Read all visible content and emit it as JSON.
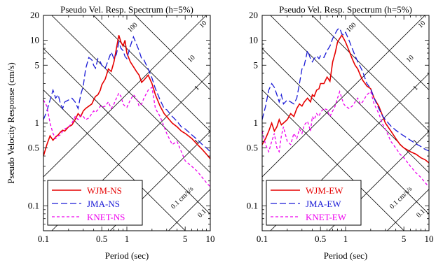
{
  "chart_data": [
    {
      "type": "line",
      "title": "Pseudo Vel. Resp. Spectrum (h=5%)",
      "xlabel": "Period (sec)",
      "ylabel": "Pseudo Velocity Response (cm/s)",
      "xscale": "log",
      "yscale": "log",
      "xlim": [
        0.1,
        10
      ],
      "ylim": [
        0.05,
        20
      ],
      "xticks": [
        "0.1",
        "0.5",
        "1",
        "5",
        "10"
      ],
      "yticks": [
        "0.1",
        "0.5",
        "1",
        "5",
        "10",
        "20"
      ],
      "tripartite_grid": {
        "acceleration_lines": [
          "100",
          "10",
          "1"
        ],
        "displacement_lines": [
          "10",
          "1",
          "0.1 cm/s/s",
          "0.1"
        ]
      },
      "legend": {
        "placement": "bottom-left"
      },
      "series": [
        {
          "name": "WJM-NS",
          "color": "#e60000",
          "dash": "solid",
          "x": [
            0.1,
            0.11,
            0.12,
            0.13,
            0.14,
            0.15,
            0.16,
            0.17,
            0.18,
            0.2,
            0.22,
            0.24,
            0.26,
            0.28,
            0.3,
            0.32,
            0.35,
            0.38,
            0.4,
            0.42,
            0.45,
            0.48,
            0.5,
            0.55,
            0.6,
            0.65,
            0.7,
            0.75,
            0.8,
            0.85,
            0.9,
            0.95,
            1.0,
            1.1,
            1.2,
            1.3,
            1.4,
            1.5,
            1.6,
            1.8,
            2.0,
            2.2,
            2.5,
            2.8,
            3.0,
            3.5,
            4.0,
            4.5,
            5.0,
            6.0,
            7.0,
            8.0,
            9.0,
            10.0
          ],
          "y": [
            0.4,
            0.55,
            0.7,
            0.62,
            0.68,
            0.72,
            0.78,
            0.82,
            0.8,
            0.9,
            0.95,
            1.1,
            1.3,
            1.2,
            1.4,
            1.5,
            1.6,
            1.7,
            1.9,
            2.1,
            2.2,
            2.5,
            2.9,
            3.4,
            4.5,
            4.2,
            5.5,
            8.0,
            11.5,
            9.5,
            8.5,
            10.0,
            7.0,
            5.5,
            4.8,
            4.2,
            3.8,
            3.1,
            3.3,
            3.8,
            3.0,
            2.2,
            1.6,
            1.3,
            1.2,
            1.0,
            0.9,
            0.8,
            0.75,
            0.65,
            0.55,
            0.48,
            0.42,
            0.37
          ]
        },
        {
          "name": "JMA-NS",
          "color": "#1a1ad6",
          "dash": "long-dash",
          "x": [
            0.1,
            0.11,
            0.12,
            0.13,
            0.14,
            0.15,
            0.16,
            0.17,
            0.18,
            0.2,
            0.22,
            0.24,
            0.26,
            0.28,
            0.3,
            0.32,
            0.35,
            0.38,
            0.4,
            0.42,
            0.45,
            0.48,
            0.5,
            0.55,
            0.6,
            0.65,
            0.7,
            0.75,
            0.8,
            0.85,
            0.9,
            0.95,
            1.0,
            1.1,
            1.2,
            1.3,
            1.4,
            1.5,
            1.6,
            1.8,
            2.0,
            2.2,
            2.5,
            2.8,
            3.0,
            3.5,
            4.0,
            4.5,
            5.0,
            6.0,
            7.0,
            8.0,
            9.0,
            10.0
          ],
          "y": [
            1.1,
            1.4,
            1.9,
            2.5,
            2.0,
            2.2,
            1.7,
            1.5,
            1.8,
            1.9,
            2.0,
            1.8,
            1.5,
            2.2,
            2.8,
            4.5,
            6.2,
            5.8,
            5.0,
            4.6,
            6.0,
            5.5,
            5.0,
            4.6,
            5.8,
            7.2,
            6.0,
            6.8,
            9.5,
            8.0,
            7.5,
            6.4,
            6.0,
            8.5,
            11.0,
            9.0,
            7.5,
            6.0,
            5.8,
            4.5,
            3.5,
            2.6,
            1.9,
            1.5,
            1.45,
            1.2,
            1.05,
            0.9,
            0.85,
            0.72,
            0.63,
            0.55,
            0.5,
            0.45
          ]
        },
        {
          "name": "KNET-NS",
          "color": "#ee00ee",
          "dash": "short-dash",
          "x": [
            0.1,
            0.11,
            0.12,
            0.13,
            0.14,
            0.15,
            0.16,
            0.17,
            0.18,
            0.2,
            0.22,
            0.24,
            0.26,
            0.28,
            0.3,
            0.32,
            0.35,
            0.38,
            0.4,
            0.42,
            0.45,
            0.48,
            0.5,
            0.55,
            0.6,
            0.65,
            0.7,
            0.75,
            0.8,
            0.85,
            0.9,
            0.95,
            1.0,
            1.1,
            1.2,
            1.3,
            1.4,
            1.5,
            1.6,
            1.8,
            2.0,
            2.2,
            2.5,
            2.8,
            3.0,
            3.5,
            4.0,
            4.5,
            5.0,
            6.0,
            7.0,
            8.0,
            9.0,
            10.0
          ],
          "y": [
            1.9,
            1.6,
            1.0,
            0.75,
            0.65,
            0.7,
            0.72,
            0.8,
            0.85,
            0.9,
            1.0,
            1.2,
            1.1,
            1.25,
            1.2,
            1.1,
            1.15,
            1.3,
            1.4,
            1.35,
            1.45,
            1.6,
            1.55,
            1.6,
            1.8,
            1.5,
            1.7,
            2.0,
            2.3,
            2.1,
            1.7,
            1.6,
            1.55,
            1.9,
            2.2,
            2.0,
            1.6,
            1.7,
            2.0,
            2.5,
            2.7,
            1.5,
            1.2,
            0.9,
            0.75,
            0.55,
            0.6,
            0.45,
            0.35,
            0.3,
            0.26,
            0.22,
            0.19,
            0.17
          ]
        }
      ]
    },
    {
      "type": "line",
      "title": "Pseudo Vel. Resp. Spectrum (h=5%)",
      "xlabel": "Period (sec)",
      "ylabel": "",
      "xscale": "log",
      "yscale": "log",
      "xlim": [
        0.1,
        10
      ],
      "ylim": [
        0.05,
        20
      ],
      "xticks": [
        "0.1",
        "0.5",
        "1",
        "5",
        "10"
      ],
      "yticks": [
        "0.1",
        "0.5",
        "1",
        "5",
        "10",
        "20"
      ],
      "tripartite_grid": {
        "acceleration_lines": [
          "100",
          "10",
          "1"
        ],
        "displacement_lines": [
          "10",
          "1",
          "0.1 cm/s/s",
          "0.1"
        ]
      },
      "legend": {
        "placement": "bottom-left"
      },
      "series": [
        {
          "name": "WJM-EW",
          "color": "#e60000",
          "dash": "solid",
          "x": [
            0.1,
            0.11,
            0.12,
            0.13,
            0.14,
            0.15,
            0.16,
            0.17,
            0.18,
            0.2,
            0.22,
            0.24,
            0.26,
            0.28,
            0.3,
            0.32,
            0.35,
            0.38,
            0.4,
            0.42,
            0.45,
            0.48,
            0.5,
            0.55,
            0.6,
            0.65,
            0.7,
            0.75,
            0.8,
            0.85,
            0.9,
            0.95,
            1.0,
            1.1,
            1.2,
            1.3,
            1.4,
            1.5,
            1.6,
            1.8,
            2.0,
            2.2,
            2.5,
            2.8,
            3.0,
            3.5,
            4.0,
            4.5,
            5.0,
            6.0,
            7.0,
            8.0,
            9.0,
            10.0
          ],
          "y": [
            0.55,
            0.65,
            0.8,
            1.0,
            0.8,
            0.9,
            1.1,
            0.95,
            1.0,
            1.1,
            1.3,
            1.2,
            1.5,
            1.7,
            1.6,
            1.8,
            2.0,
            1.8,
            2.2,
            2.1,
            2.5,
            2.6,
            3.0,
            3.0,
            3.6,
            3.2,
            5.5,
            7.0,
            9.5,
            10.5,
            11.5,
            10.5,
            9.5,
            7.5,
            6.0,
            5.0,
            4.5,
            3.8,
            3.3,
            2.8,
            2.6,
            2.0,
            1.6,
            1.2,
            1.0,
            0.8,
            0.65,
            0.55,
            0.5,
            0.45,
            0.42,
            0.38,
            0.36,
            0.33
          ]
        },
        {
          "name": "JMA-EW",
          "color": "#1a1ad6",
          "dash": "long-dash",
          "x": [
            0.1,
            0.11,
            0.12,
            0.13,
            0.14,
            0.15,
            0.16,
            0.17,
            0.18,
            0.2,
            0.22,
            0.24,
            0.26,
            0.28,
            0.3,
            0.32,
            0.35,
            0.38,
            0.4,
            0.42,
            0.45,
            0.48,
            0.5,
            0.55,
            0.6,
            0.65,
            0.7,
            0.75,
            0.8,
            0.85,
            0.9,
            0.95,
            1.0,
            1.1,
            1.2,
            1.3,
            1.4,
            1.5,
            1.6,
            1.8,
            2.0,
            2.2,
            2.5,
            2.8,
            3.0,
            3.5,
            4.0,
            4.5,
            5.0,
            6.0,
            7.0,
            8.0,
            9.0,
            10.0
          ],
          "y": [
            1.1,
            1.6,
            2.5,
            3.0,
            2.7,
            2.2,
            1.8,
            2.2,
            1.7,
            1.9,
            1.8,
            1.7,
            2.0,
            3.0,
            4.5,
            5.0,
            7.5,
            6.0,
            5.5,
            6.0,
            6.5,
            6.0,
            6.5,
            6.2,
            7.5,
            8.5,
            10.5,
            12.0,
            13.5,
            14.0,
            12.0,
            11.5,
            12.5,
            10.0,
            8.0,
            6.5,
            5.5,
            4.8,
            4.2,
            3.0,
            2.6,
            2.0,
            1.5,
            1.2,
            1.1,
            0.92,
            0.82,
            0.75,
            0.7,
            0.62,
            0.56,
            0.52,
            0.48,
            0.46
          ]
        },
        {
          "name": "KNET-EW",
          "color": "#ee00ee",
          "dash": "short-dash",
          "x": [
            0.1,
            0.11,
            0.12,
            0.13,
            0.14,
            0.15,
            0.16,
            0.17,
            0.18,
            0.2,
            0.22,
            0.24,
            0.26,
            0.28,
            0.3,
            0.32,
            0.35,
            0.38,
            0.4,
            0.42,
            0.45,
            0.48,
            0.5,
            0.55,
            0.6,
            0.65,
            0.7,
            0.75,
            0.8,
            0.85,
            0.9,
            0.95,
            1.0,
            1.1,
            1.2,
            1.3,
            1.4,
            1.5,
            1.6,
            1.8,
            2.0,
            2.2,
            2.5,
            2.8,
            3.0,
            3.5,
            4.0,
            4.5,
            5.0,
            6.0,
            7.0,
            8.0,
            9.0,
            10.0
          ],
          "y": [
            0.8,
            0.55,
            0.45,
            0.6,
            0.75,
            0.5,
            0.45,
            0.7,
            0.9,
            0.6,
            0.55,
            0.75,
            0.65,
            0.85,
            0.75,
            0.95,
            1.05,
            0.8,
            1.2,
            1.1,
            1.3,
            1.2,
            1.35,
            1.5,
            1.45,
            1.2,
            1.4,
            1.6,
            2.0,
            2.4,
            2.0,
            1.7,
            1.6,
            1.5,
            1.6,
            1.8,
            2.0,
            1.7,
            1.8,
            2.2,
            2.4,
            1.7,
            1.3,
            0.95,
            0.85,
            0.6,
            0.5,
            0.42,
            0.38,
            0.3,
            0.25,
            0.22,
            0.19,
            0.17
          ]
        }
      ]
    }
  ]
}
